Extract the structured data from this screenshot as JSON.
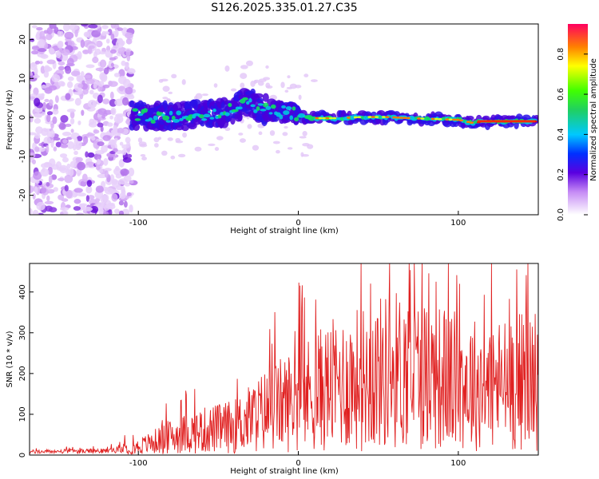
{
  "title": "S126.2025.335.01.27.C35",
  "spectrogram": {
    "type": "heatmap",
    "xlabel": "Height of straight line (km)",
    "ylabel": "Frequency (Hz)",
    "xlim": [
      -168,
      150
    ],
    "ylim": [
      -25,
      24
    ],
    "xticks": [
      -100,
      0,
      100
    ],
    "yticks": [
      -20,
      -10,
      0,
      10,
      20
    ],
    "signal_track": [
      {
        "x": -105,
        "y": 0.5
      },
      {
        "x": -90,
        "y": 0.3
      },
      {
        "x": -75,
        "y": 0.4
      },
      {
        "x": -60,
        "y": 0.9
      },
      {
        "x": -45,
        "y": 1.5
      },
      {
        "x": -35,
        "y": 3.5
      },
      {
        "x": -30,
        "y": 4.0
      },
      {
        "x": -25,
        "y": 2.5
      },
      {
        "x": -15,
        "y": 1.5
      },
      {
        "x": -5,
        "y": 1.5
      },
      {
        "x": 0,
        "y": 0.3
      },
      {
        "x": 10,
        "y": -0.2
      },
      {
        "x": 25,
        "y": -0.2
      },
      {
        "x": 40,
        "y": 0.1
      },
      {
        "x": 55,
        "y": 0.1
      },
      {
        "x": 70,
        "y": -0.2
      },
      {
        "x": 85,
        "y": -0.4
      },
      {
        "x": 100,
        "y": -0.6
      },
      {
        "x": 110,
        "y": -1.5
      },
      {
        "x": 115,
        "y": -1.0
      },
      {
        "x": 130,
        "y": -1.0
      },
      {
        "x": 148,
        "y": -1.0
      }
    ]
  },
  "colorbar": {
    "label": "Normalized spectral amplitude",
    "range": [
      0,
      0.95
    ],
    "ticks": [
      "0.0",
      "0.2",
      "0.4",
      "0.6",
      "0.8"
    ]
  },
  "snr_plot": {
    "type": "line",
    "xlabel": "Height of straight line (km)",
    "ylabel": "SNR (10 * v/v)",
    "xlim": [
      -168,
      150
    ],
    "ylim": [
      0,
      470
    ],
    "xticks": [
      -100,
      0,
      100
    ],
    "yticks": [
      0,
      100,
      200,
      300,
      400
    ],
    "line_color": "#e02020",
    "envelope_mean": [
      {
        "x": -168,
        "y": 8
      },
      {
        "x": -120,
        "y": 10
      },
      {
        "x": -100,
        "y": 20
      },
      {
        "x": -80,
        "y": 45
      },
      {
        "x": -60,
        "y": 60
      },
      {
        "x": -40,
        "y": 70
      },
      {
        "x": -20,
        "y": 110
      },
      {
        "x": 0,
        "y": 140
      },
      {
        "x": 20,
        "y": 170
      },
      {
        "x": 40,
        "y": 190
      },
      {
        "x": 60,
        "y": 210
      },
      {
        "x": 80,
        "y": 200
      },
      {
        "x": 100,
        "y": 180
      },
      {
        "x": 120,
        "y": 170
      },
      {
        "x": 150,
        "y": 190
      }
    ]
  }
}
